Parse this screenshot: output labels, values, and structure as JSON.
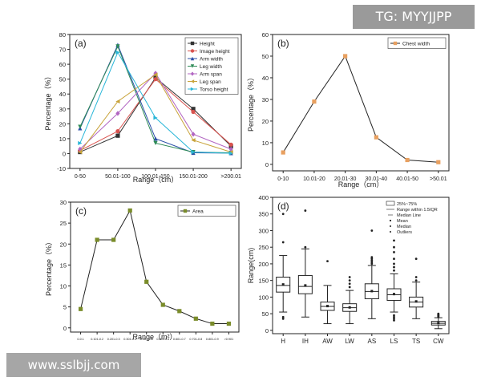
{
  "watermarks": {
    "top": "TG: MYYJJPP",
    "bottom": "www.sslbjj.com"
  },
  "chart_data": [
    {
      "panel": "(a)",
      "type": "line",
      "xlabel": "Range（cm）",
      "ylabel": "Percentage（%）",
      "categories": [
        "0-50",
        "50.01-100",
        "100.01-150",
        "150.01-200",
        ">200.01"
      ],
      "ylim": [
        -10,
        80
      ],
      "yticks": [
        -10,
        0,
        10,
        20,
        30,
        40,
        50,
        60,
        70,
        80
      ],
      "legend_position": "top-right",
      "series": [
        {
          "name": "Height",
          "color": "#333333",
          "marker": "square",
          "values": [
            1,
            12,
            51,
            30,
            5
          ]
        },
        {
          "name": "Image height",
          "color": "#d9534f",
          "marker": "circle",
          "values": [
            2,
            15,
            50,
            28,
            6
          ]
        },
        {
          "name": "Arm width",
          "color": "#2b4fa8",
          "marker": "triangle-up",
          "values": [
            17,
            73,
            10,
            0.5,
            0.3
          ]
        },
        {
          "name": "Leg width",
          "color": "#2e8b57",
          "marker": "triangle-down",
          "values": [
            18,
            72,
            7,
            1,
            0.5
          ]
        },
        {
          "name": "Arm span",
          "color": "#b266c2",
          "marker": "diamond",
          "values": [
            3,
            27,
            54,
            13,
            3
          ]
        },
        {
          "name": "Leg span",
          "color": "#c8a33a",
          "marker": "triangle-left",
          "values": [
            1,
            35,
            53,
            9,
            1
          ]
        },
        {
          "name": "Torso height",
          "color": "#29b6d8",
          "marker": "triangle-right",
          "values": [
            7,
            68,
            24,
            1,
            0.2
          ]
        }
      ]
    },
    {
      "panel": "(b)",
      "type": "line",
      "xlabel": "Range（cm）",
      "ylabel": "Percentage（%）",
      "categories": [
        "0-10",
        "10.01-20",
        "20.01-30",
        "30.01-40",
        "40.01-50",
        ">50.01"
      ],
      "ylim": [
        -3,
        60
      ],
      "yticks": [
        0,
        10,
        20,
        30,
        40,
        50,
        60
      ],
      "legend_position": "top-right",
      "series": [
        {
          "name": "Chest width",
          "color": "#e8a060",
          "marker": "square",
          "values": [
            5.5,
            29,
            50,
            12.5,
            2,
            1
          ]
        }
      ]
    },
    {
      "panel": "(c)",
      "type": "line",
      "xlabel": "Range（m²）",
      "ylabel": "Percentage（%）",
      "categories": [
        "0-0.1",
        "0.101-0.2",
        "0.201-0.3",
        "0.301-0.4",
        "0.401-0.5",
        "0.501-0.6",
        "0.601-0.7",
        "0.701-0.8",
        "0.801-0.9",
        ">0.901"
      ],
      "ylim": [
        -1,
        30
      ],
      "yticks": [
        0,
        5,
        10,
        15,
        20,
        25,
        30
      ],
      "legend_position": "top-right",
      "series": [
        {
          "name": "Area",
          "color": "#7a8c2a",
          "marker": "square",
          "values": [
            4.5,
            21,
            21,
            28,
            11,
            5.5,
            4,
            2.2,
            1,
            1
          ]
        }
      ]
    },
    {
      "panel": "(d)",
      "type": "box",
      "xlabel": "",
      "ylabel": "Range(cm)",
      "categories": [
        "H",
        "IH",
        "AW",
        "LW",
        "AS",
        "LS",
        "TS",
        "CW"
      ],
      "ylim": [
        -10,
        400
      ],
      "yticks": [
        0,
        50,
        100,
        150,
        200,
        250,
        300,
        350,
        400
      ],
      "legend_position": "top-right",
      "legend": [
        "25%~75%",
        "Range within 1.5IQR",
        "Median Line",
        "Mean",
        "Median",
        "Outliers"
      ],
      "boxes": [
        {
          "label": "H",
          "whisker_low": 55,
          "q1": 115,
          "median": 135,
          "mean": 138,
          "q3": 160,
          "whisker_high": 225,
          "outliers": [
            40,
            35,
            265,
            350
          ]
        },
        {
          "label": "IH",
          "whisker_low": 40,
          "q1": 110,
          "median": 132,
          "mean": 135,
          "q3": 165,
          "whisker_high": 245,
          "outliers": [
            250,
            360
          ]
        },
        {
          "label": "AW",
          "whisker_low": 20,
          "q1": 60,
          "median": 72,
          "mean": 73,
          "q3": 85,
          "whisker_high": 135,
          "outliers": [
            208
          ]
        },
        {
          "label": "LW",
          "whisker_low": 20,
          "q1": 57,
          "median": 68,
          "mean": 69,
          "q3": 80,
          "whisker_high": 120,
          "outliers": [
            130,
            140,
            150,
            160
          ]
        },
        {
          "label": "AS",
          "whisker_low": 35,
          "q1": 95,
          "median": 117,
          "mean": 118,
          "q3": 140,
          "whisker_high": 195,
          "outliers": [
            200,
            205,
            210,
            215,
            220,
            300
          ]
        },
        {
          "label": "LS",
          "whisker_low": 55,
          "q1": 90,
          "median": 107,
          "mean": 109,
          "q3": 125,
          "whisker_high": 170,
          "outliers": [
            30,
            35,
            40,
            45,
            180,
            190,
            200,
            215,
            235,
            250,
            270
          ]
        },
        {
          "label": "TS",
          "whisker_low": 35,
          "q1": 70,
          "median": 85,
          "mean": 87,
          "q3": 100,
          "whisker_high": 145,
          "outliers": [
            150,
            160,
            215
          ]
        },
        {
          "label": "CW",
          "whisker_low": 5,
          "q1": 16,
          "median": 21,
          "mean": 22,
          "q3": 27,
          "whisker_high": 38,
          "outliers": [
            40,
            42,
            44,
            46,
            48,
            50
          ]
        }
      ]
    }
  ]
}
